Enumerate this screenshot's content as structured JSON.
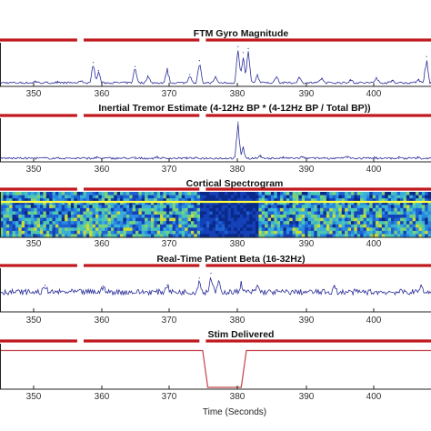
{
  "colors": {
    "trace": "#2b2f9a",
    "stim_trace": "#c2444a",
    "marker_bar": "#c0191e",
    "axis": "#222222",
    "spectrogram_band": "#ffff40"
  },
  "x_axis": {
    "ticks": [
      "350",
      "360",
      "370",
      "380",
      "390",
      "400"
    ],
    "range": [
      343,
      410
    ],
    "label": "Time (Seconds)"
  },
  "chart_data": [
    {
      "type": "line",
      "title": "FTM Gyro Magnitude",
      "x_range": [
        343,
        410
      ],
      "marker_segments": [
        [
          343,
          355
        ],
        [
          356,
          374
        ],
        [
          375,
          410
        ]
      ],
      "events": [
        {
          "x": 348.5,
          "y": 0.06
        },
        {
          "x": 352.0,
          "y": 0.05
        },
        {
          "x": 355.5,
          "y": 0.08
        },
        {
          "x": 357.5,
          "y": 0.55
        },
        {
          "x": 358.3,
          "y": 0.35
        },
        {
          "x": 364.0,
          "y": 0.45
        },
        {
          "x": 366.0,
          "y": 0.22
        },
        {
          "x": 369.0,
          "y": 0.4
        },
        {
          "x": 372.5,
          "y": 0.25
        },
        {
          "x": 374.0,
          "y": 0.6
        },
        {
          "x": 376.5,
          "y": 0.2
        },
        {
          "x": 380.0,
          "y": 0.95
        },
        {
          "x": 380.8,
          "y": 0.8
        },
        {
          "x": 381.6,
          "y": 0.9
        },
        {
          "x": 383.0,
          "y": 0.25
        },
        {
          "x": 386.0,
          "y": 0.2
        },
        {
          "x": 389.5,
          "y": 0.18
        },
        {
          "x": 393.0,
          "y": 0.15
        },
        {
          "x": 397.5,
          "y": 0.12
        },
        {
          "x": 401.5,
          "y": 0.18
        },
        {
          "x": 404.0,
          "y": 0.1
        },
        {
          "x": 408.0,
          "y": 0.12
        },
        {
          "x": 409.3,
          "y": 0.7
        }
      ]
    },
    {
      "type": "line",
      "title": "Inertial Tremor Estimate (4-12Hz BP * (4-12Hz BP / Total BP))",
      "x_range": [
        343,
        410
      ],
      "marker_segments": [
        [
          343,
          355
        ],
        [
          356,
          374
        ],
        [
          375,
          410
        ]
      ],
      "events": [
        {
          "x": 358.0,
          "y": 0.05
        },
        {
          "x": 364.0,
          "y": 0.03
        },
        {
          "x": 367.5,
          "y": 0.05
        },
        {
          "x": 372.0,
          "y": 0.03
        },
        {
          "x": 380.0,
          "y": 0.95
        },
        {
          "x": 380.8,
          "y": 0.3
        },
        {
          "x": 383.5,
          "y": 0.08
        },
        {
          "x": 387.0,
          "y": 0.05
        },
        {
          "x": 390.0,
          "y": 0.07
        },
        {
          "x": 393.5,
          "y": 0.05
        },
        {
          "x": 397.0,
          "y": 0.06
        },
        {
          "x": 401.0,
          "y": 0.05
        },
        {
          "x": 405.0,
          "y": 0.04
        },
        {
          "x": 408.0,
          "y": 0.05
        }
      ]
    },
    {
      "type": "heatmap",
      "title": "Cortical Spectrogram",
      "x_range": [
        343,
        410
      ],
      "marker_segments": [
        [
          343,
          355
        ],
        [
          356,
          374
        ],
        [
          375,
          410
        ]
      ],
      "band_level": 0.78,
      "low_power_window": [
        374,
        383
      ]
    },
    {
      "type": "line",
      "title": "Real-Time Patient Beta (16-32Hz)",
      "x_range": [
        343,
        410
      ],
      "marker_segments": [
        [
          343,
          355
        ],
        [
          356,
          374
        ],
        [
          375,
          410
        ]
      ],
      "baseline": 0.45,
      "events": [
        {
          "x": 350.0,
          "y": 0.62
        },
        {
          "x": 359.0,
          "y": 0.6
        },
        {
          "x": 369.0,
          "y": 0.63
        },
        {
          "x": 374.0,
          "y": 0.8
        },
        {
          "x": 375.8,
          "y": 0.92
        },
        {
          "x": 377.0,
          "y": 0.72
        },
        {
          "x": 380.5,
          "y": 0.7
        },
        {
          "x": 383.0,
          "y": 0.62
        },
        {
          "x": 395.0,
          "y": 0.58
        },
        {
          "x": 408.5,
          "y": 0.62
        }
      ]
    },
    {
      "type": "line",
      "title": "Stim Delivered",
      "x_range": [
        343,
        410
      ],
      "marker_segments": [
        [
          343,
          355
        ],
        [
          356,
          374
        ],
        [
          375,
          410
        ]
      ],
      "steps": [
        [
          343,
          1
        ],
        [
          374.5,
          1
        ],
        [
          375.3,
          0
        ],
        [
          380.5,
          0
        ],
        [
          381.3,
          1
        ],
        [
          410,
          1
        ]
      ]
    }
  ]
}
